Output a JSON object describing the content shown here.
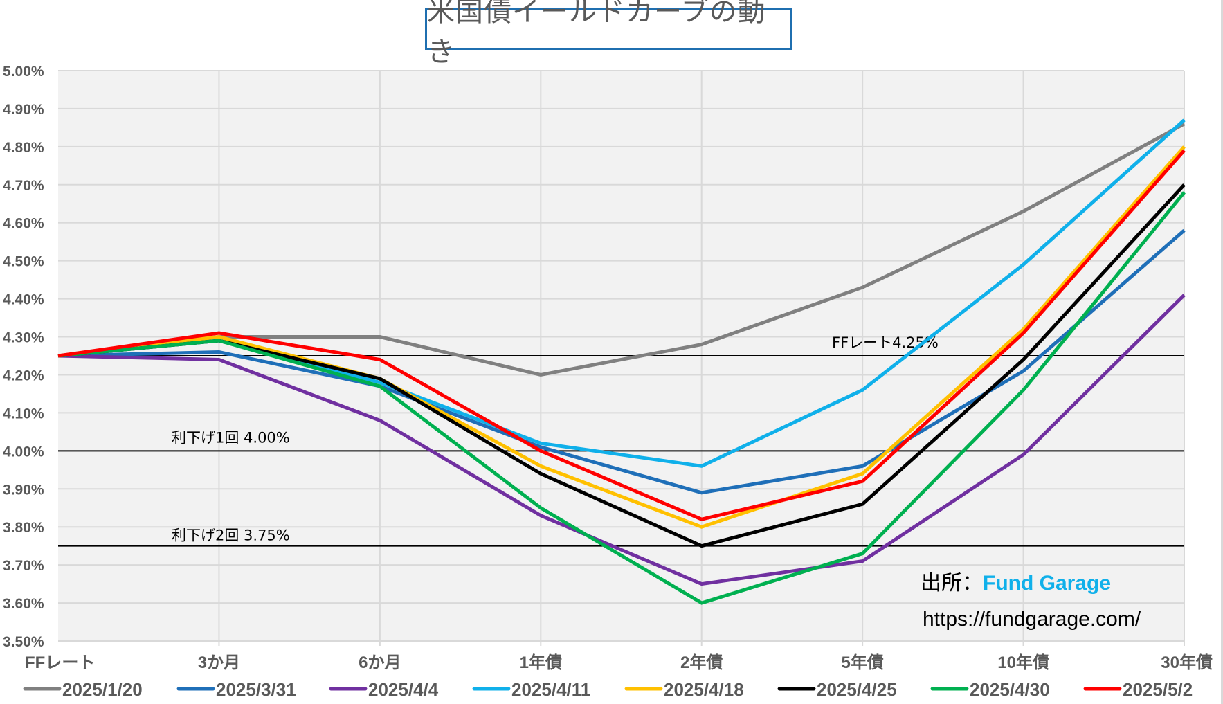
{
  "chart_data": {
    "type": "line",
    "title": "米国債イールドカーブの動き",
    "xlabel": "",
    "ylabel": "",
    "categories": [
      "FFレート",
      "3か月",
      "6か月",
      "1年債",
      "2年債",
      "5年債",
      "10年債",
      "30年債"
    ],
    "ylim": [
      3.5,
      5.0
    ],
    "yticks": [
      "3.50%",
      "3.60%",
      "3.70%",
      "3.80%",
      "3.90%",
      "4.00%",
      "4.10%",
      "4.20%",
      "4.30%",
      "4.40%",
      "4.50%",
      "4.60%",
      "4.70%",
      "4.80%",
      "4.90%",
      "5.00%"
    ],
    "grid": true,
    "legend_position": "bottom",
    "series": [
      {
        "name": "2025/1/20",
        "color": "#808080",
        "values": [
          4.25,
          4.3,
          4.3,
          4.2,
          4.28,
          4.43,
          4.63,
          4.86
        ]
      },
      {
        "name": "2025/3/31",
        "color": "#1f6fb8",
        "values": [
          4.25,
          4.26,
          4.17,
          4.01,
          3.89,
          3.96,
          4.21,
          4.58
        ]
      },
      {
        "name": "2025/4/4",
        "color": "#7030a0",
        "values": [
          4.25,
          4.24,
          4.08,
          3.83,
          3.65,
          3.71,
          3.99,
          4.41
        ]
      },
      {
        "name": "2025/4/11",
        "color": "#10b0ea",
        "values": [
          4.25,
          4.29,
          4.18,
          4.02,
          3.96,
          4.16,
          4.49,
          4.87
        ]
      },
      {
        "name": "2025/4/18",
        "color": "#ffc000",
        "values": [
          4.25,
          4.3,
          4.19,
          3.96,
          3.8,
          3.94,
          4.32,
          4.8
        ]
      },
      {
        "name": "2025/4/25",
        "color": "#000000",
        "values": [
          4.25,
          4.29,
          4.19,
          3.94,
          3.75,
          3.86,
          4.24,
          4.7
        ]
      },
      {
        "name": "2025/4/30",
        "color": "#00b050",
        "values": [
          4.25,
          4.29,
          4.17,
          3.85,
          3.6,
          3.73,
          4.16,
          4.68
        ]
      },
      {
        "name": "2025/5/2",
        "color": "#ff0000",
        "values": [
          4.25,
          4.31,
          4.24,
          4.0,
          3.82,
          3.92,
          4.31,
          4.79
        ]
      }
    ],
    "reference_lines": [
      {
        "value": 4.25,
        "label": "FFレート4.25%"
      },
      {
        "value": 4.0,
        "label": "利下げ1回 4.00%"
      },
      {
        "value": 3.75,
        "label": "利下げ2回 3.75%"
      }
    ],
    "annotations": {
      "source_prefix": "出所：",
      "source_name": "Fund Garage",
      "source_url": "https://fundgarage.com/"
    }
  },
  "colors": {
    "title_border": "#1f6fb0",
    "plot_bg": "#f2f2f2",
    "grid": "#d9d9d9",
    "axis_text": "#595959",
    "source_name": "#10b0ea"
  }
}
